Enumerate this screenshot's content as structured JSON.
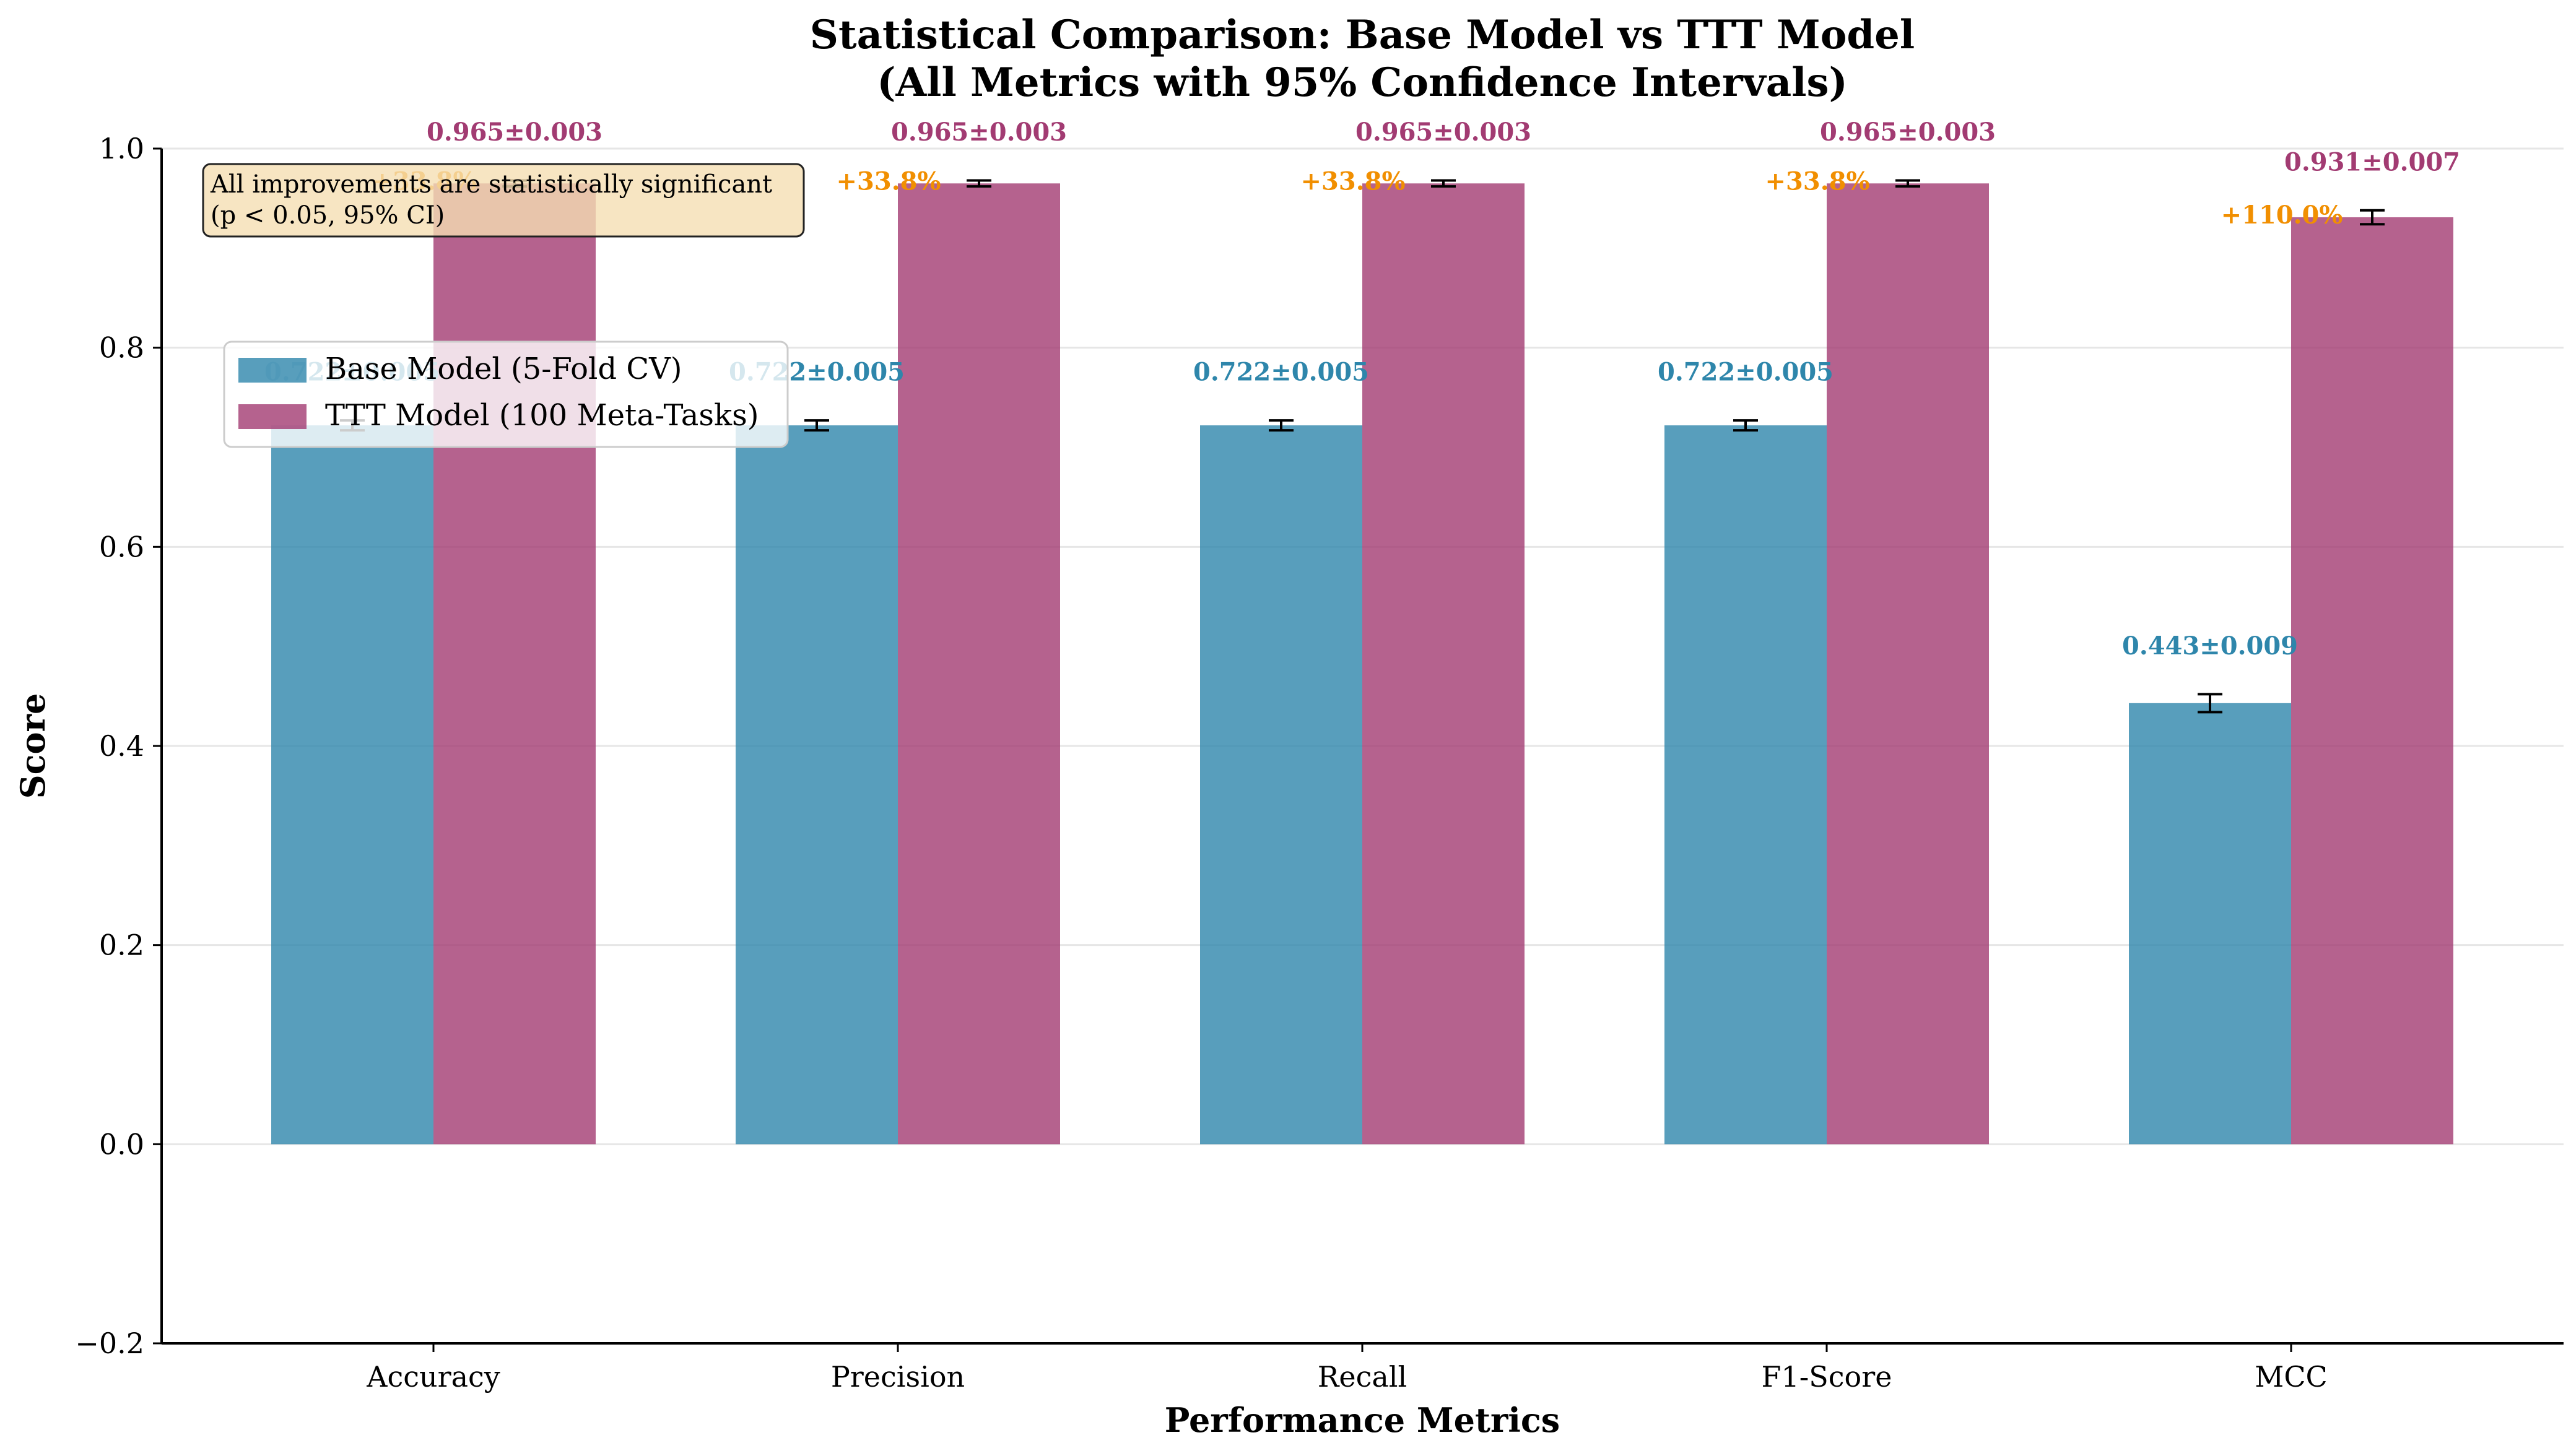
{
  "chart_data": {
    "type": "bar",
    "title_line1": "Statistical Comparison: Base Model vs TTT Model",
    "title_line2": "(All Metrics with 95% Confidence Intervals)",
    "xlabel": "Performance Metrics",
    "ylabel": "Score",
    "categories": [
      "Accuracy",
      "Precision",
      "Recall",
      "F1-Score",
      "MCC"
    ],
    "ylim": [
      -0.2,
      1.0
    ],
    "yticks": [
      -0.2,
      0.0,
      0.2,
      0.4,
      0.6,
      0.8,
      1.0
    ],
    "ytick_labels": [
      "−0.2",
      "0.0",
      "0.2",
      "0.4",
      "0.6",
      "0.8",
      "1.0"
    ],
    "grid": "horizontal",
    "legend_position": "upper-left",
    "series": [
      {
        "name": "Base Model (5-Fold CV)",
        "color": "#2e86ab",
        "values": [
          0.722,
          0.722,
          0.722,
          0.722,
          0.443
        ],
        "errors": [
          0.005,
          0.005,
          0.005,
          0.005,
          0.009
        ],
        "labels": [
          "0.722±0.005",
          "0.722±0.005",
          "0.722±0.005",
          "0.722±0.005",
          "0.443±0.009"
        ]
      },
      {
        "name": "TTT Model (100 Meta-Tasks)",
        "color": "#a23b72",
        "values": [
          0.965,
          0.965,
          0.965,
          0.965,
          0.931
        ],
        "errors": [
          0.003,
          0.003,
          0.003,
          0.003,
          0.007
        ],
        "labels": [
          "0.965±0.003",
          "0.965±0.003",
          "0.965±0.003",
          "0.965±0.003",
          "0.931±0.007"
        ]
      }
    ],
    "improvements": [
      "+33.8%",
      "+33.8%",
      "+33.8%",
      "+33.8%",
      "+110.0%"
    ],
    "improvement_color": "#f18f01",
    "annotation_lines": [
      "All improvements are statistically significant",
      "(p < 0.05, 95% CI)"
    ],
    "annotation_box_color": "#f5deb3"
  }
}
